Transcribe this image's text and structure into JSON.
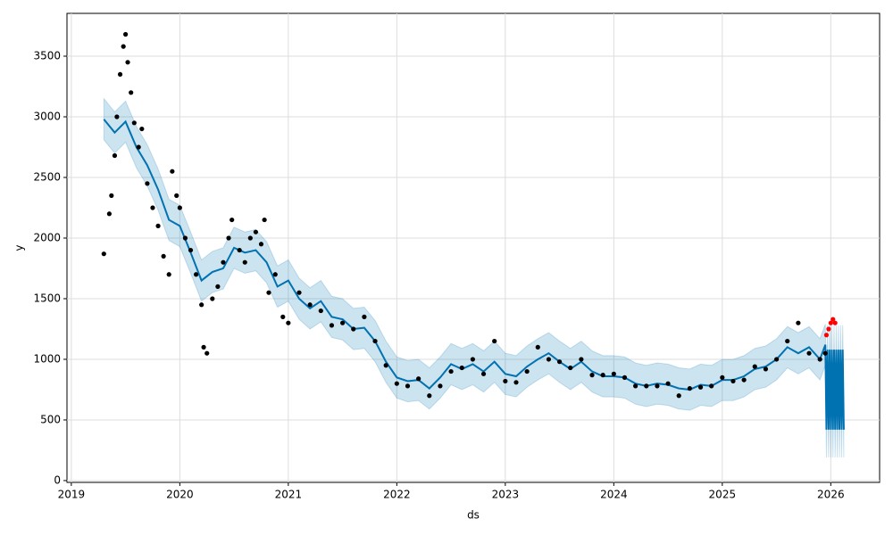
{
  "chart_data": {
    "type": "line",
    "x_label": "ds",
    "y_label": "y",
    "xlim": [
      2018.96,
      2026.45
    ],
    "ylim": [
      -15,
      3853
    ],
    "xticks": [
      2019,
      2020,
      2021,
      2022,
      2023,
      2024,
      2025,
      2026
    ],
    "yticks": [
      0,
      500,
      1000,
      1500,
      2000,
      2500,
      3000,
      3500
    ],
    "grid": true,
    "series": [
      {
        "kind": "band-line",
        "color": "#0072B2",
        "band_color": "#0072B2",
        "x": [
          2019.3,
          2019.4,
          2019.5,
          2019.6,
          2019.7,
          2019.8,
          2019.9,
          2020.0,
          2020.1,
          2020.2,
          2020.3,
          2020.4,
          2020.5,
          2020.6,
          2020.7,
          2020.8,
          2020.9,
          2021.0,
          2021.1,
          2021.2,
          2021.3,
          2021.4,
          2021.5,
          2021.6,
          2021.7,
          2021.8,
          2021.9,
          2022.0,
          2022.1,
          2022.2,
          2022.3,
          2022.4,
          2022.5,
          2022.6,
          2022.7,
          2022.8,
          2022.9,
          2023.0,
          2023.1,
          2023.2,
          2023.3,
          2023.4,
          2023.5,
          2023.6,
          2023.7,
          2023.8,
          2023.9,
          2024.0,
          2024.1,
          2024.2,
          2024.3,
          2024.4,
          2024.5,
          2024.6,
          2024.7,
          2024.8,
          2024.9,
          2025.0,
          2025.1,
          2025.2,
          2025.3,
          2025.4,
          2025.5,
          2025.6,
          2025.7,
          2025.8,
          2025.9,
          2025.95,
          2025.96,
          2025.97,
          2025.98,
          2025.99,
          2026.0,
          2026.01,
          2026.02,
          2026.03,
          2026.04,
          2026.05,
          2026.06,
          2026.07,
          2026.08,
          2026.09,
          2026.1,
          2026.11,
          2026.12
        ],
        "values": [
          2980,
          2870,
          2960,
          2750,
          2600,
          2400,
          2150,
          2100,
          1880,
          1650,
          1720,
          1750,
          1920,
          1880,
          1900,
          1800,
          1600,
          1650,
          1500,
          1420,
          1480,
          1350,
          1330,
          1250,
          1260,
          1150,
          980,
          850,
          820,
          830,
          760,
          850,
          960,
          920,
          960,
          900,
          980,
          880,
          860,
          940,
          1000,
          1050,
          980,
          920,
          980,
          900,
          860,
          860,
          850,
          800,
          780,
          800,
          790,
          760,
          750,
          790,
          780,
          830,
          830,
          860,
          920,
          940,
          1000,
          1100,
          1050,
          1100,
          1000,
          1120,
          420,
          1080,
          420,
          1080,
          420,
          1080,
          420,
          1080,
          420,
          1080,
          420,
          1080,
          420,
          1080,
          420,
          1080,
          420
        ],
        "lower": [
          2810,
          2700,
          2790,
          2580,
          2430,
          2230,
          1980,
          1930,
          1710,
          1480,
          1550,
          1580,
          1750,
          1710,
          1730,
          1630,
          1430,
          1480,
          1330,
          1250,
          1310,
          1180,
          1160,
          1080,
          1090,
          980,
          810,
          680,
          650,
          660,
          590,
          680,
          790,
          750,
          790,
          730,
          810,
          710,
          690,
          770,
          830,
          880,
          810,
          750,
          810,
          730,
          690,
          690,
          680,
          630,
          610,
          630,
          620,
          590,
          580,
          620,
          610,
          660,
          660,
          690,
          750,
          770,
          830,
          930,
          880,
          930,
          830,
          950,
          190,
          900,
          190,
          900,
          190,
          900,
          190,
          900,
          190,
          900,
          190,
          900,
          190,
          900,
          190,
          900,
          190
        ],
        "upper": [
          3150,
          3040,
          3130,
          2920,
          2770,
          2570,
          2320,
          2270,
          2050,
          1820,
          1890,
          1920,
          2090,
          2050,
          2070,
          1970,
          1770,
          1820,
          1670,
          1590,
          1650,
          1520,
          1500,
          1420,
          1430,
          1320,
          1150,
          1020,
          990,
          1000,
          930,
          1020,
          1130,
          1090,
          1130,
          1070,
          1150,
          1050,
          1030,
          1110,
          1170,
          1220,
          1150,
          1090,
          1150,
          1070,
          1030,
          1030,
          1020,
          970,
          950,
          970,
          960,
          930,
          920,
          960,
          950,
          1000,
          1000,
          1030,
          1090,
          1110,
          1170,
          1270,
          1220,
          1270,
          1170,
          1290,
          600,
          1280,
          600,
          1280,
          600,
          1280,
          600,
          1280,
          600,
          1280,
          600,
          1280,
          600,
          1280,
          600,
          1280,
          600
        ]
      },
      {
        "kind": "scatter",
        "color": "#000000",
        "x": [
          2019.3,
          2019.35,
          2019.37,
          2019.4,
          2019.42,
          2019.45,
          2019.48,
          2019.5,
          2019.52,
          2019.55,
          2019.58,
          2019.62,
          2019.65,
          2019.7,
          2019.75,
          2019.8,
          2019.85,
          2019.9,
          2019.93,
          2019.97,
          2020.0,
          2020.05,
          2020.1,
          2020.15,
          2020.2,
          2020.22,
          2020.25,
          2020.3,
          2020.35,
          2020.4,
          2020.45,
          2020.48,
          2020.55,
          2020.6,
          2020.65,
          2020.7,
          2020.75,
          2020.78,
          2020.82,
          2020.88,
          2020.95,
          2021.0,
          2021.1,
          2021.2,
          2021.3,
          2021.4,
          2021.5,
          2021.6,
          2021.7,
          2021.8,
          2021.9,
          2022.0,
          2022.1,
          2022.2,
          2022.3,
          2022.4,
          2022.5,
          2022.6,
          2022.7,
          2022.8,
          2022.9,
          2023.0,
          2023.1,
          2023.2,
          2023.3,
          2023.4,
          2023.5,
          2023.6,
          2023.7,
          2023.8,
          2023.9,
          2024.0,
          2024.1,
          2024.2,
          2024.3,
          2024.4,
          2024.5,
          2024.6,
          2024.7,
          2024.8,
          2024.9,
          2025.0,
          2025.1,
          2025.2,
          2025.3,
          2025.4,
          2025.5,
          2025.6,
          2025.7,
          2025.8,
          2025.9,
          2025.95
        ],
        "values": [
          1870,
          2200,
          2350,
          2680,
          3000,
          3350,
          3580,
          3680,
          3450,
          3200,
          2950,
          2750,
          2900,
          2450,
          2250,
          2100,
          1850,
          1700,
          2550,
          2350,
          2250,
          2000,
          1900,
          1700,
          1450,
          1100,
          1050,
          1500,
          1600,
          1800,
          2000,
          2150,
          1900,
          1800,
          2000,
          2050,
          1950,
          2150,
          1550,
          1700,
          1350,
          1300,
          1550,
          1450,
          1400,
          1280,
          1300,
          1250,
          1350,
          1150,
          950,
          800,
          780,
          840,
          700,
          780,
          900,
          930,
          1000,
          880,
          1150,
          820,
          810,
          900,
          1100,
          1000,
          980,
          930,
          1000,
          870,
          870,
          880,
          850,
          780,
          780,
          780,
          800,
          700,
          760,
          770,
          780,
          850,
          820,
          830,
          940,
          920,
          1000,
          1150,
          1300,
          1050,
          1000,
          1050
        ]
      },
      {
        "kind": "scatter",
        "color": "#ff0000",
        "x": [
          2025.96,
          2025.98,
          2026.0,
          2026.02,
          2026.04
        ],
        "values": [
          1200,
          1250,
          1300,
          1330,
          1300
        ]
      }
    ]
  }
}
